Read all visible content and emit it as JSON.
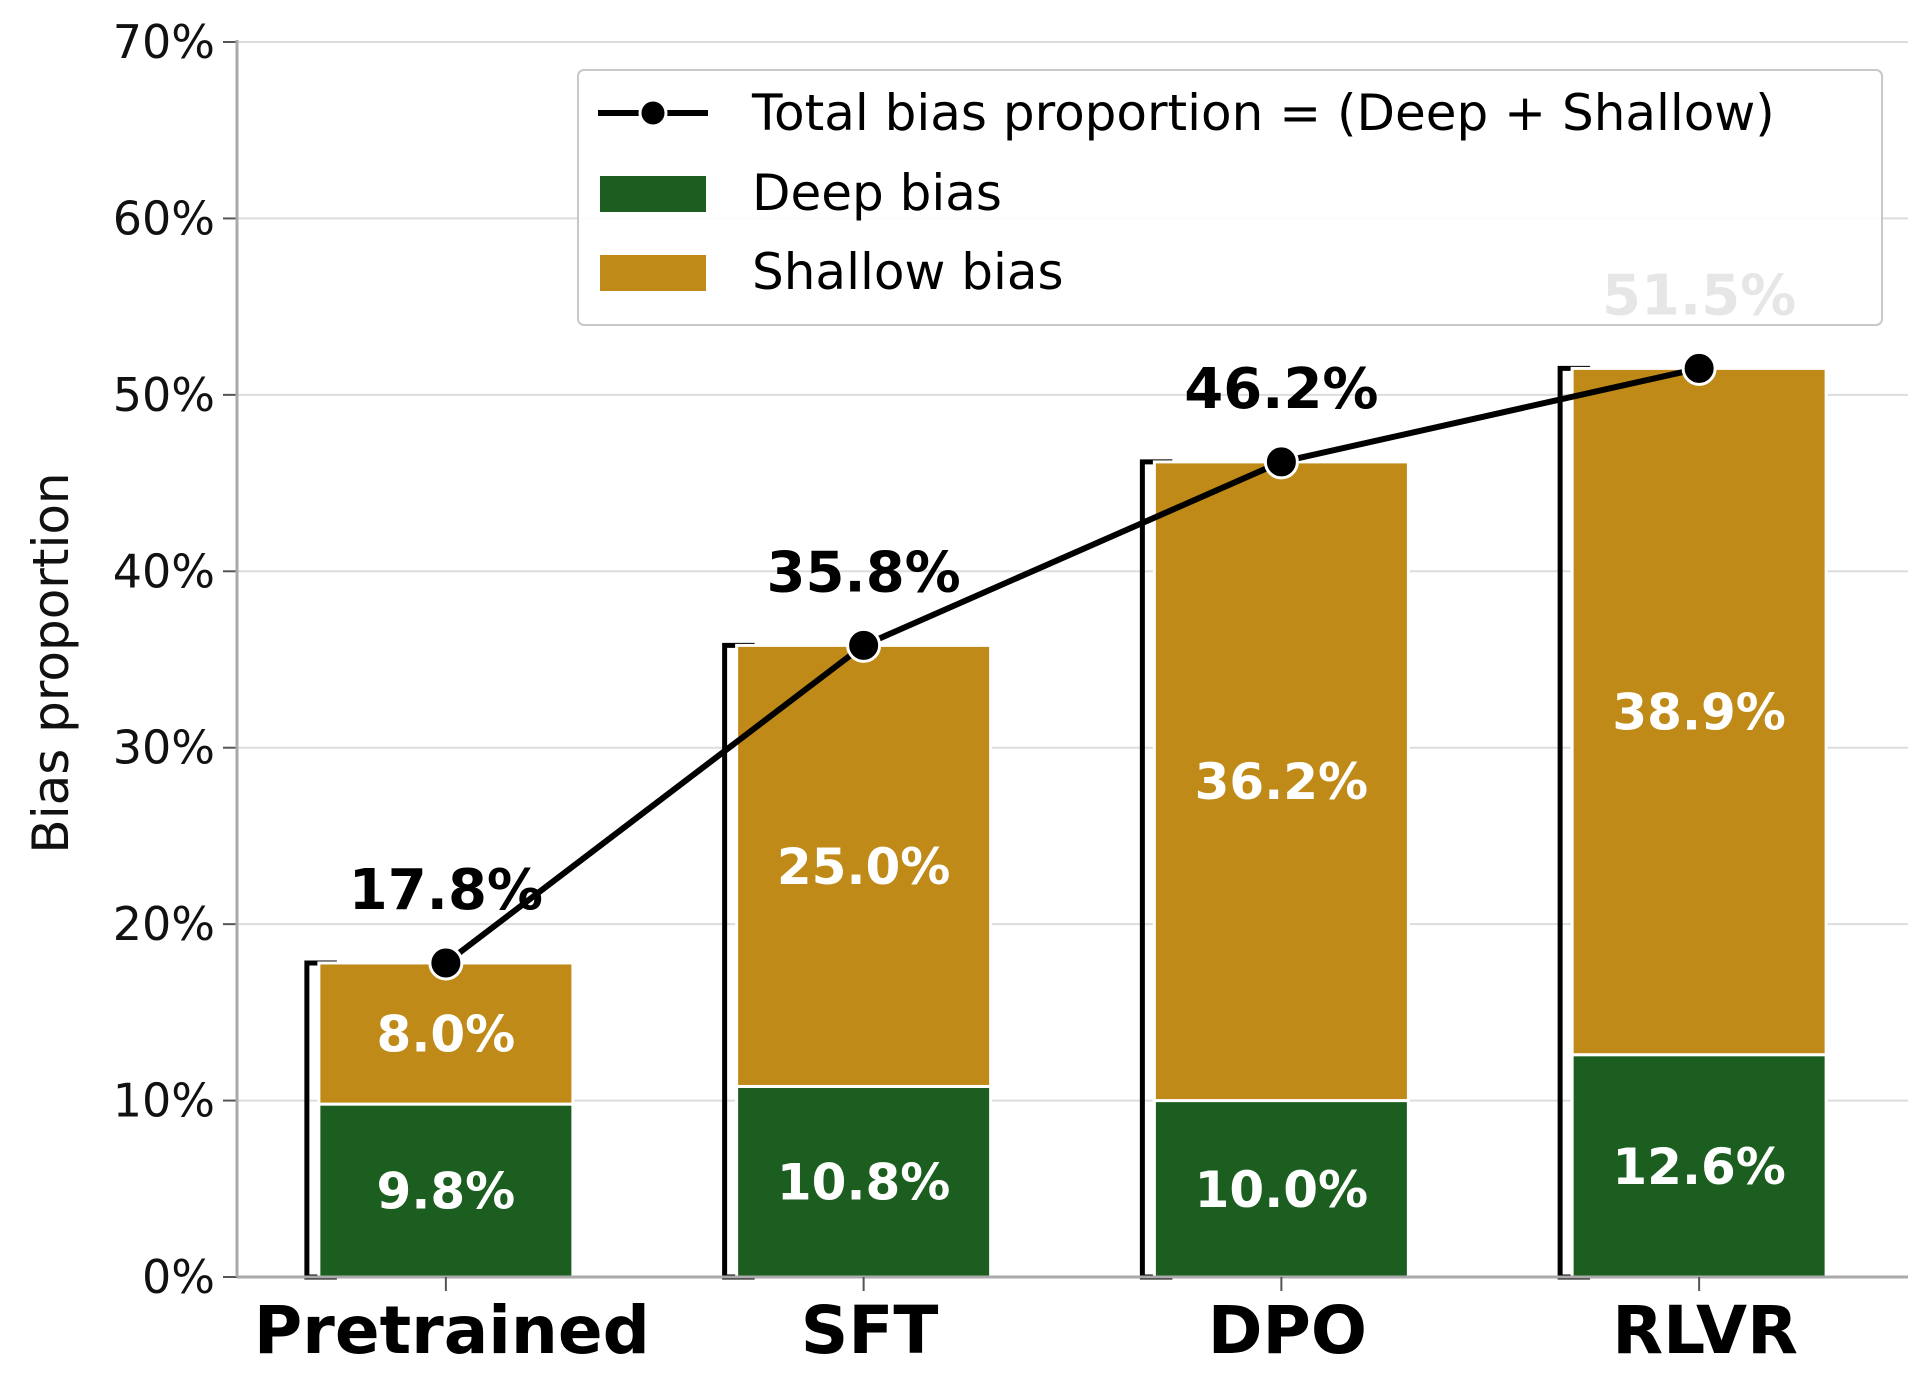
{
  "chart_data": {
    "type": "bar",
    "stacked": true,
    "categories": [
      "Pretrained",
      "SFT",
      "DPO",
      "RLVR"
    ],
    "series": [
      {
        "name": "Deep bias",
        "color": "#1b5e20",
        "values": [
          9.8,
          10.8,
          10.0,
          12.6
        ],
        "labels": [
          "9.8%",
          "10.8%",
          "10.0%",
          "12.6%"
        ]
      },
      {
        "name": "Shallow bias",
        "color": "#bf8a17",
        "values": [
          8.0,
          25.0,
          36.2,
          38.9
        ],
        "labels": [
          "8.0%",
          "25.0%",
          "36.2%",
          "38.9%"
        ]
      }
    ],
    "line": {
      "name": "Total bias proportion = (Deep + Shallow)",
      "color": "#000000",
      "values": [
        17.8,
        35.8,
        46.2,
        51.5
      ],
      "labels": [
        "17.8%",
        "35.8%",
        "46.2%",
        "51.5%"
      ]
    },
    "ylabel": "Bias proportion",
    "ylim": [
      0,
      70
    ],
    "yticks": [
      "0%",
      "10%",
      "20%",
      "30%",
      "40%",
      "50%",
      "60%",
      "70%"
    ],
    "grid": true,
    "legend_position": "top-right"
  }
}
